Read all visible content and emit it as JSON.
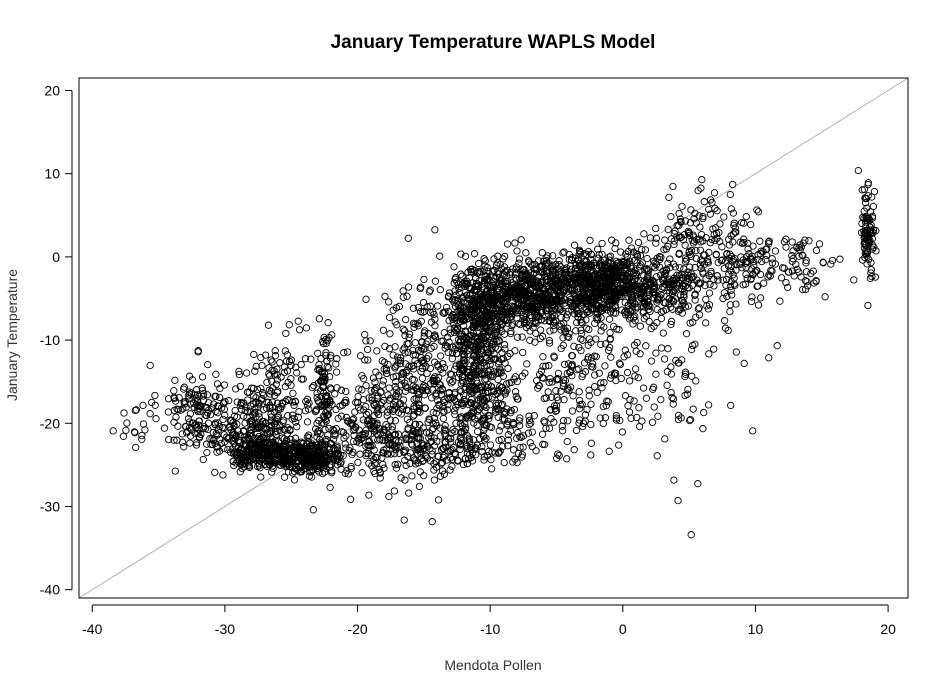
{
  "chart_data": {
    "type": "scatter",
    "title": "January Temperature WAPLS Model",
    "xlabel": "Mendota Pollen",
    "ylabel": "January Temperature",
    "xlim": [
      -41,
      21.5
    ],
    "ylim": [
      -41,
      21.5
    ],
    "xticks": [
      -40,
      -30,
      -20,
      -10,
      0,
      10,
      20
    ],
    "yticks": [
      -40,
      -30,
      -20,
      -10,
      0,
      10,
      20
    ],
    "xtick_labels": [
      "-40",
      "-30",
      "-20",
      "-10",
      "0",
      "10",
      "20"
    ],
    "ytick_labels": [
      "-40",
      "-30",
      "-20",
      "-10",
      "0",
      "10",
      "20"
    ],
    "reference_line": {
      "type": "identity",
      "slope": 1,
      "intercept": 0,
      "color": "#b0b0b0"
    },
    "marker": {
      "shape": "open-circle",
      "color": "#000000"
    },
    "grid": false,
    "legend": "none",
    "series": [
      {
        "clusters": [
          {
            "cx": -37,
            "cy": -20,
            "sx": 0.8,
            "sy": 1.5,
            "n": 15
          },
          {
            "cx": -32,
            "cy": -18.5,
            "sx": 1.5,
            "sy": 2.8,
            "n": 150
          },
          {
            "cx": -27.5,
            "cy": -20.5,
            "sx": 1.8,
            "sy": 2.5,
            "n": 200
          },
          {
            "cx": -27,
            "cy": -23.5,
            "sx": 1.5,
            "sy": 0.9,
            "n": 260
          },
          {
            "cx": -23.5,
            "cy": -24,
            "sx": 1.3,
            "sy": 1.0,
            "n": 280
          },
          {
            "cx": -22.5,
            "cy": -16,
            "sx": 0.3,
            "sy": 3.5,
            "n": 80
          },
          {
            "cx": -25.5,
            "cy": -16,
            "sx": 1.5,
            "sy": 3.5,
            "n": 110
          },
          {
            "cx": -19,
            "cy": -20,
            "sx": 1.8,
            "sy": 3.8,
            "n": 220
          },
          {
            "cx": -15.5,
            "cy": -15,
            "sx": 2.0,
            "sy": 5.5,
            "n": 300
          },
          {
            "cx": -14,
            "cy": -23,
            "sx": 3.0,
            "sy": 1.5,
            "n": 140
          },
          {
            "cx": -11,
            "cy": -8,
            "sx": 1.3,
            "sy": 3.0,
            "n": 380
          },
          {
            "cx": -11,
            "cy": -15.5,
            "sx": 1.3,
            "sy": 2.5,
            "n": 200
          },
          {
            "cx": -9.5,
            "cy": -20,
            "sx": 3.0,
            "sy": 2.5,
            "n": 150
          },
          {
            "cx": -8,
            "cy": -4,
            "sx": 2.2,
            "sy": 2.2,
            "n": 420
          },
          {
            "cx": -4,
            "cy": -4,
            "sx": 2.5,
            "sy": 2.0,
            "n": 420
          },
          {
            "cx": -1,
            "cy": -3,
            "sx": 2.0,
            "sy": 1.8,
            "n": 360
          },
          {
            "cx": -3,
            "cy": -13,
            "sx": 3.0,
            "sy": 4.0,
            "n": 220
          },
          {
            "cx": 3,
            "cy": -3.5,
            "sx": 2.0,
            "sy": 2.0,
            "n": 200
          },
          {
            "cx": 4,
            "cy": -13,
            "sx": 3.0,
            "sy": 6.0,
            "n": 90
          },
          {
            "cx": 6,
            "cy": 1.5,
            "sx": 2.0,
            "sy": 3.0,
            "n": 160
          },
          {
            "cx": 10,
            "cy": -1,
            "sx": 2.5,
            "sy": 2.0,
            "n": 110
          },
          {
            "cx": 14,
            "cy": 0,
            "sx": 2.0,
            "sy": 1.5,
            "n": 30
          },
          {
            "cx": 18.5,
            "cy": 3,
            "sx": 0.25,
            "sy": 3.0,
            "n": 90
          }
        ]
      }
    ]
  }
}
